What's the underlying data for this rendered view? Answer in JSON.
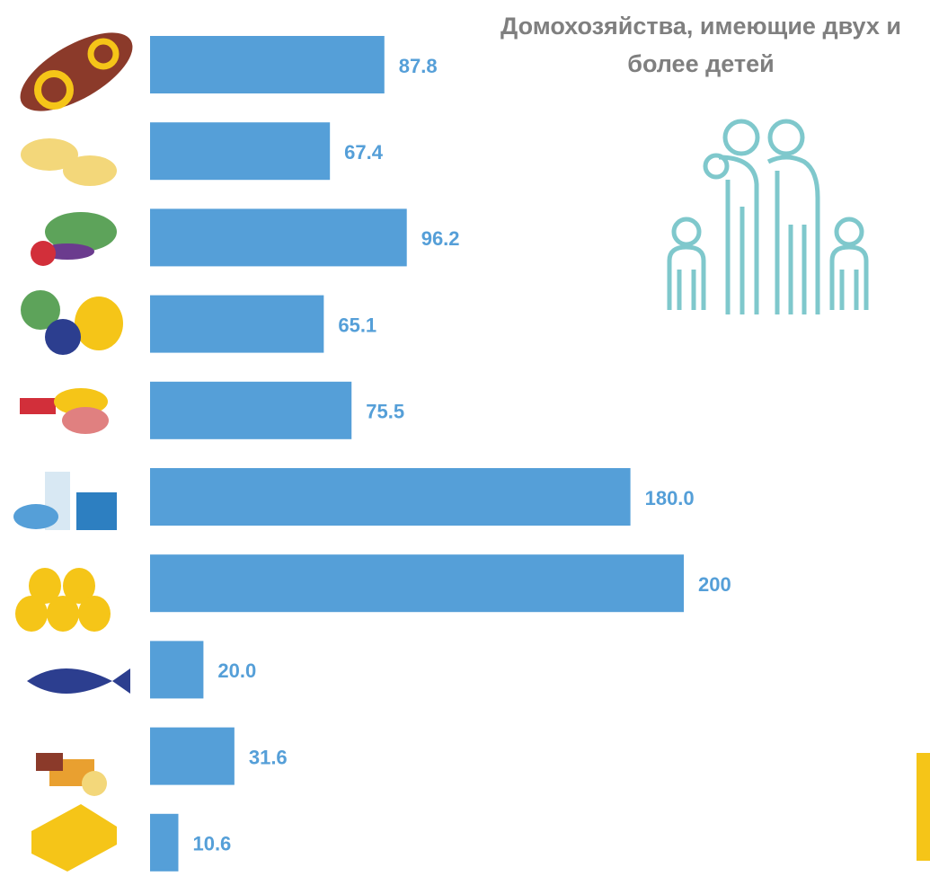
{
  "chart_data": {
    "type": "bar",
    "orientation": "horizontal",
    "title": "Домохозяйства, имеющие двух и более детей",
    "values": [
      87.8,
      67.4,
      96.2,
      65.1,
      75.5,
      180.0,
      200,
      20.0,
      31.6,
      10.6
    ],
    "value_labels": [
      "87.8",
      "67.4",
      "96.2",
      "65.1",
      "75.5",
      "180.0",
      "200",
      "20.0",
      "31.6",
      "10.6"
    ],
    "color": "#559fd8"
  }
}
